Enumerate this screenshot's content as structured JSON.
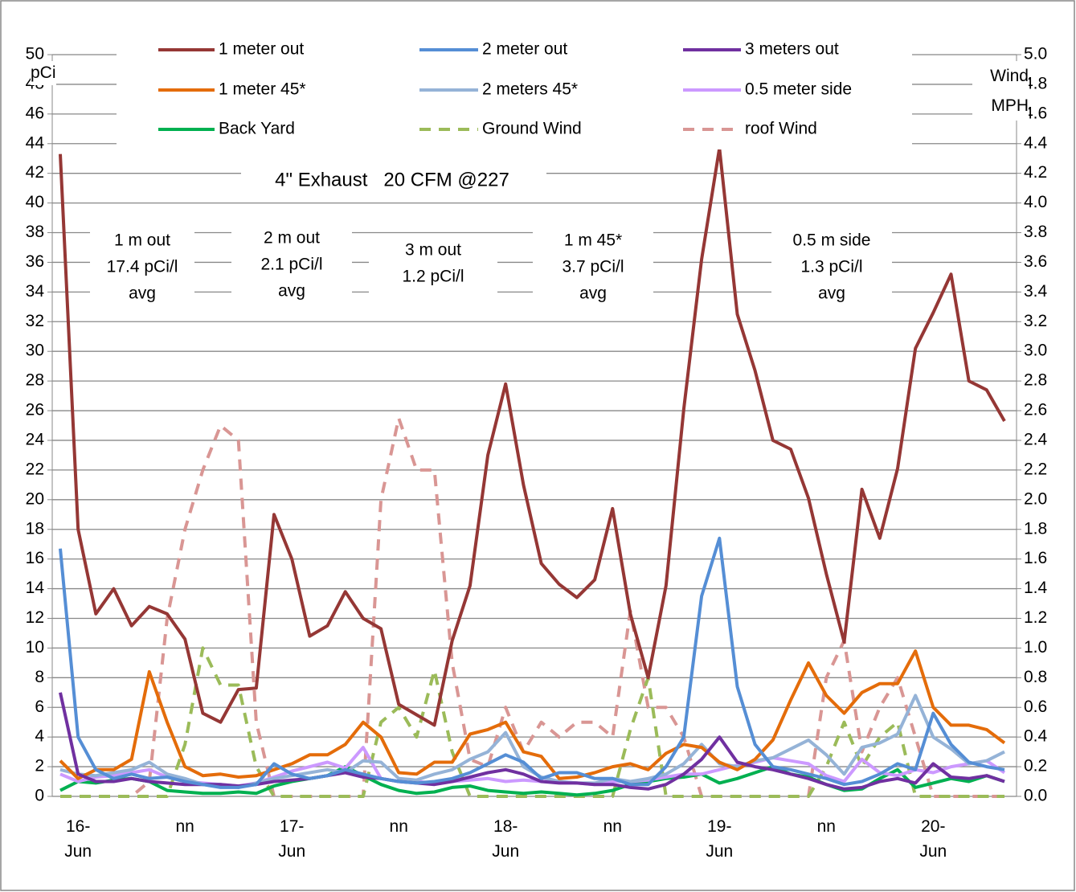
{
  "chart_data": {
    "type": "line",
    "title": "4\" Exhaust   20 CFM @227",
    "ylabel": "pCi",
    "y2label": "Wind MPH",
    "annotations": [
      {
        "lines": [
          "1 m out",
          "17.4 pCi/l",
          "avg"
        ]
      },
      {
        "lines": [
          "2 m out",
          "2.1 pCi/l",
          "avg"
        ]
      },
      {
        "lines": [
          "3 m out",
          "1.2 pCi/l"
        ]
      },
      {
        "lines": [
          "1 m 45*",
          "3.7 pCi/l",
          "avg"
        ]
      },
      {
        "lines": [
          "0.5 m side",
          "1.3 pCi/l",
          "avg"
        ]
      }
    ],
    "categories": [
      null,
      "16-Jun",
      null,
      null,
      null,
      null,
      null,
      "nn",
      null,
      null,
      null,
      null,
      null,
      "17-Jun",
      null,
      null,
      null,
      null,
      null,
      "nn",
      null,
      null,
      null,
      null,
      null,
      "18-Jun",
      null,
      null,
      null,
      null,
      null,
      "nn",
      null,
      null,
      null,
      null,
      null,
      "19-Jun",
      null,
      null,
      null,
      null,
      null,
      "nn",
      null,
      null,
      null,
      null,
      null,
      "20-Jun",
      null,
      null,
      null,
      null
    ],
    "ylim": [
      0,
      50
    ],
    "yticks": [
      0,
      2,
      4,
      6,
      8,
      10,
      12,
      14,
      16,
      18,
      20,
      22,
      24,
      26,
      28,
      30,
      32,
      34,
      36,
      38,
      40,
      42,
      44,
      46,
      48,
      50
    ],
    "y2lim": [
      0,
      5
    ],
    "y2ticks": [
      {
        "value": 0,
        "label": "0.0"
      },
      0.2,
      0.4,
      0.6,
      0.8,
      {
        "value": 1,
        "label": "1.0"
      },
      1.2,
      1.4,
      1.6,
      1.8,
      {
        "value": 2,
        "label": "2.0"
      },
      2.2,
      2.4,
      2.6,
      2.8,
      {
        "value": 3,
        "label": "3.0"
      },
      3.2,
      3.4,
      3.6,
      3.8,
      {
        "value": 4,
        "label": "4.0"
      },
      4.2,
      4.4,
      4.6,
      4.8,
      {
        "value": 5,
        "label": "5.0"
      }
    ],
    "grid": true,
    "series": [
      {
        "name": "1 meter out",
        "color": "#953735",
        "values": [
          43.3,
          18,
          12.3,
          14,
          11.5,
          12.8,
          12.3,
          10.6,
          5.6,
          5,
          7.2,
          7.3,
          19,
          16,
          10.8,
          11.5,
          13.8,
          12,
          11.3,
          6.2,
          5.5,
          4.8,
          10.5,
          14.2,
          23,
          27.8,
          21,
          15.7,
          14.3,
          13.4,
          14.6,
          19.4,
          12.3,
          8,
          14.2,
          26.1,
          36.2,
          43.7,
          32.5,
          28.7,
          24,
          23.4,
          20.1,
          15,
          10.4,
          20.7,
          17.4,
          22.1,
          30.2,
          32.6,
          35.2,
          28,
          27.4,
          25.3
        ]
      },
      {
        "name": "2 meter out",
        "color": "#558ed5",
        "values": [
          16.7,
          4,
          1.8,
          1.2,
          1.5,
          1.2,
          1.3,
          1,
          0.8,
          0.6,
          0.6,
          0.8,
          2.2,
          1.5,
          1.2,
          1.4,
          1.8,
          1.5,
          1.2,
          1,
          0.9,
          1,
          1.2,
          1.6,
          2.2,
          2.8,
          2.3,
          1.2,
          1.6,
          1.6,
          1.2,
          1.2,
          0.8,
          0.8,
          2,
          4,
          13.5,
          17.4,
          7.4,
          3.5,
          2,
          1.8,
          1.5,
          1.2,
          0.8,
          1,
          1.5,
          2.2,
          1.8,
          5.6,
          3.5,
          2.3,
          2,
          1.8
        ]
      },
      {
        "name": "3 meters out",
        "color": "#7030a0",
        "values": [
          7,
          1.5,
          1,
          1,
          1.2,
          1,
          0.9,
          0.8,
          0.8,
          0.8,
          0.7,
          0.8,
          1,
          1.1,
          1.2,
          1.4,
          1.6,
          1.3,
          1.2,
          1,
          0.9,
          0.8,
          1,
          1.3,
          1.6,
          1.8,
          1.5,
          1,
          0.9,
          0.9,
          0.8,
          0.8,
          0.6,
          0.5,
          0.8,
          1.5,
          2.5,
          4,
          2.3,
          2,
          1.8,
          1.5,
          1.2,
          0.8,
          0.5,
          0.6,
          1,
          1.2,
          0.9,
          2.2,
          1.3,
          1.2,
          1.4,
          1
        ]
      },
      {
        "name": "1 meter 45*",
        "color": "#e46c0a",
        "values": [
          2.4,
          1.2,
          1.8,
          1.8,
          2.5,
          8.4,
          5,
          2,
          1.4,
          1.5,
          1.3,
          1.4,
          1.8,
          2.2,
          2.8,
          2.8,
          3.5,
          5,
          4,
          1.6,
          1.5,
          2.3,
          2.3,
          4.2,
          4.5,
          5,
          3,
          2.7,
          1.2,
          1.3,
          1.6,
          2,
          2.2,
          1.8,
          2.9,
          3.5,
          3.3,
          2.3,
          1.8,
          2.5,
          3.8,
          6.5,
          9,
          6.8,
          5.6,
          7,
          7.6,
          7.6,
          9.8,
          6,
          4.8,
          4.8,
          4.5,
          3.6
        ]
      },
      {
        "name": "2 meters 45*",
        "color": "#95b3d7",
        "values": [
          1.8,
          1.5,
          1.4,
          1.6,
          1.8,
          2.3,
          1.5,
          1.2,
          0.8,
          0.8,
          0.6,
          0.9,
          1.2,
          1.4,
          1.6,
          1.8,
          1.6,
          2.4,
          2.3,
          1.2,
          1.1,
          1.5,
          1.8,
          2.5,
          3,
          4.3,
          2,
          1.3,
          1,
          0.9,
          0.9,
          1.2,
          1,
          1.2,
          1.5,
          2.2,
          3.5,
          2.2,
          2,
          2.4,
          2.6,
          3.2,
          3.8,
          2.8,
          1.5,
          3.3,
          3.6,
          4.2,
          6.8,
          4,
          3.2,
          2.2,
          2.4,
          3
        ]
      },
      {
        "name": "0.5 meter side",
        "color": "#cc99ff",
        "values": [
          1.5,
          1,
          1.3,
          1.4,
          1.6,
          1.8,
          1.3,
          1,
          0.9,
          0.8,
          0.7,
          0.9,
          1.3,
          1.7,
          2,
          2.3,
          1.9,
          3.3,
          1.2,
          1,
          1,
          0.9,
          1,
          1.1,
          1.2,
          1,
          1.1,
          1,
          1,
          0.9,
          0.8,
          1,
          1,
          1.1,
          1.3,
          1.5,
          1.5,
          1.8,
          2.1,
          2.3,
          2.6,
          2.4,
          2.2,
          1.4,
          1,
          2.5,
          1.6,
          1.4,
          1.8,
          1.6,
          2,
          2.2,
          2.4,
          1.6
        ]
      },
      {
        "name": "Back Yard",
        "color": "#00b050",
        "values": [
          0.4,
          1,
          0.9,
          1.1,
          1.2,
          1,
          0.4,
          0.3,
          0.2,
          0.2,
          0.3,
          0.2,
          0.7,
          1,
          1.2,
          1.4,
          2,
          1.4,
          0.8,
          0.4,
          0.2,
          0.3,
          0.6,
          0.7,
          0.4,
          0.3,
          0.2,
          0.3,
          0.2,
          0.1,
          0.2,
          0.4,
          0.8,
          1,
          1.2,
          1.3,
          1.5,
          0.9,
          1.2,
          1.6,
          2,
          1.5,
          1.3,
          0.8,
          0.4,
          0.5,
          1.2,
          1.8,
          0.6,
          0.9,
          1.2,
          1,
          1.4,
          1
        ]
      },
      {
        "name": "Ground Wind",
        "color": "#9bbb59",
        "axis": "y2",
        "dashed": true,
        "values": [
          0,
          0,
          0,
          0,
          0,
          0,
          0,
          0.35,
          1,
          0.75,
          0.75,
          0.2,
          0,
          0,
          0,
          0,
          0,
          0,
          0.5,
          0.6,
          0.4,
          0.85,
          0.3,
          0,
          0,
          0,
          0,
          0,
          0,
          0,
          0,
          0,
          0.45,
          0.8,
          0,
          0,
          0,
          0,
          0,
          0,
          0,
          0,
          0,
          0.2,
          0.5,
          0.2,
          0.4,
          0.5,
          0,
          0,
          0,
          0,
          0,
          0
        ]
      },
      {
        "name": "roof Wind",
        "color": "#d99694",
        "axis": "y2",
        "dashed": true,
        "values": [
          0,
          0,
          0,
          0,
          0,
          0.1,
          1.2,
          1.8,
          2.2,
          2.5,
          2.4,
          0.5,
          0,
          0,
          0,
          0,
          0,
          0,
          2,
          2.55,
          2.2,
          2.2,
          0.9,
          0.25,
          0.2,
          0.6,
          0.3,
          0.5,
          0.4,
          0.5,
          0.5,
          0.4,
          1.25,
          0.6,
          0.6,
          0.4,
          0,
          0,
          0,
          0,
          0,
          0,
          0,
          0.8,
          1.05,
          0.3,
          0.6,
          0.8,
          0.4,
          0,
          0,
          0,
          0,
          0
        ]
      }
    ]
  }
}
